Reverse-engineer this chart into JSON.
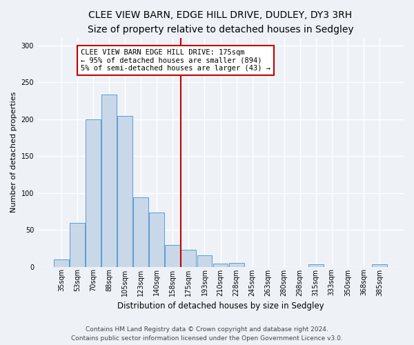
{
  "title1": "CLEE VIEW BARN, EDGE HILL DRIVE, DUDLEY, DY3 3RH",
  "title2": "Size of property relative to detached houses in Sedgley",
  "xlabel": "Distribution of detached houses by size in Sedgley",
  "ylabel": "Number of detached properties",
  "categories": [
    "35sqm",
    "53sqm",
    "70sqm",
    "88sqm",
    "105sqm",
    "123sqm",
    "140sqm",
    "158sqm",
    "175sqm",
    "193sqm",
    "210sqm",
    "228sqm",
    "245sqm",
    "263sqm",
    "280sqm",
    "298sqm",
    "315sqm",
    "333sqm",
    "350sqm",
    "368sqm",
    "385sqm"
  ],
  "values": [
    10,
    59,
    200,
    233,
    204,
    94,
    73,
    29,
    23,
    15,
    4,
    5,
    0,
    0,
    0,
    0,
    3,
    0,
    0,
    0,
    3
  ],
  "bar_color": "#c8d8e8",
  "bar_edge_color": "#5b9bd5",
  "vline_index": 8,
  "vline_color": "#c00000",
  "annotation_text": "CLEE VIEW BARN EDGE HILL DRIVE: 175sqm\n← 95% of detached houses are smaller (894)\n5% of semi-detached houses are larger (43) →",
  "annotation_box_color": "#c00000",
  "bg_color": "#eef2f7",
  "grid_color": "#ffffff",
  "footer1": "Contains HM Land Registry data © Crown copyright and database right 2024.",
  "footer2": "Contains public sector information licensed under the Open Government Licence v3.0.",
  "ylim": [
    0,
    310
  ],
  "title1_fontsize": 10,
  "title2_fontsize": 9,
  "xlabel_fontsize": 8.5,
  "ylabel_fontsize": 8,
  "tick_fontsize": 7,
  "annotation_fontsize": 7.5,
  "footer_fontsize": 6.5
}
